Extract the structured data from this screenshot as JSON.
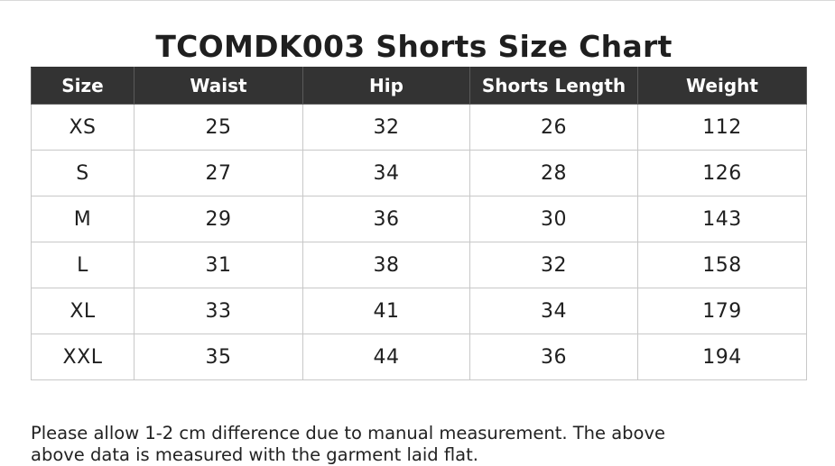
{
  "title": "TCOMDK003 Shorts Size Chart",
  "table": {
    "headers": [
      "Size",
      "Waist",
      "Hip",
      "Shorts Length",
      "Weight"
    ],
    "rows": [
      [
        "XS",
        "25",
        "32",
        "26",
        "112"
      ],
      [
        "S",
        "27",
        "34",
        "28",
        "126"
      ],
      [
        "M",
        "29",
        "36",
        "30",
        "143"
      ],
      [
        "L",
        "31",
        "38",
        "32",
        "158"
      ],
      [
        "XL",
        "33",
        "41",
        "34",
        "179"
      ],
      [
        "XXL",
        "35",
        "44",
        "36",
        "194"
      ]
    ]
  },
  "note": {
    "line1": "Please allow 1-2 cm difference due to manual measurement. The above",
    "line2": "above data is measured with the garment laid flat."
  },
  "colors": {
    "header_background": "#333333",
    "header_text": "#ffffff",
    "grid_lines": "#c8c8c8",
    "body_text": "#1f1f1f"
  }
}
